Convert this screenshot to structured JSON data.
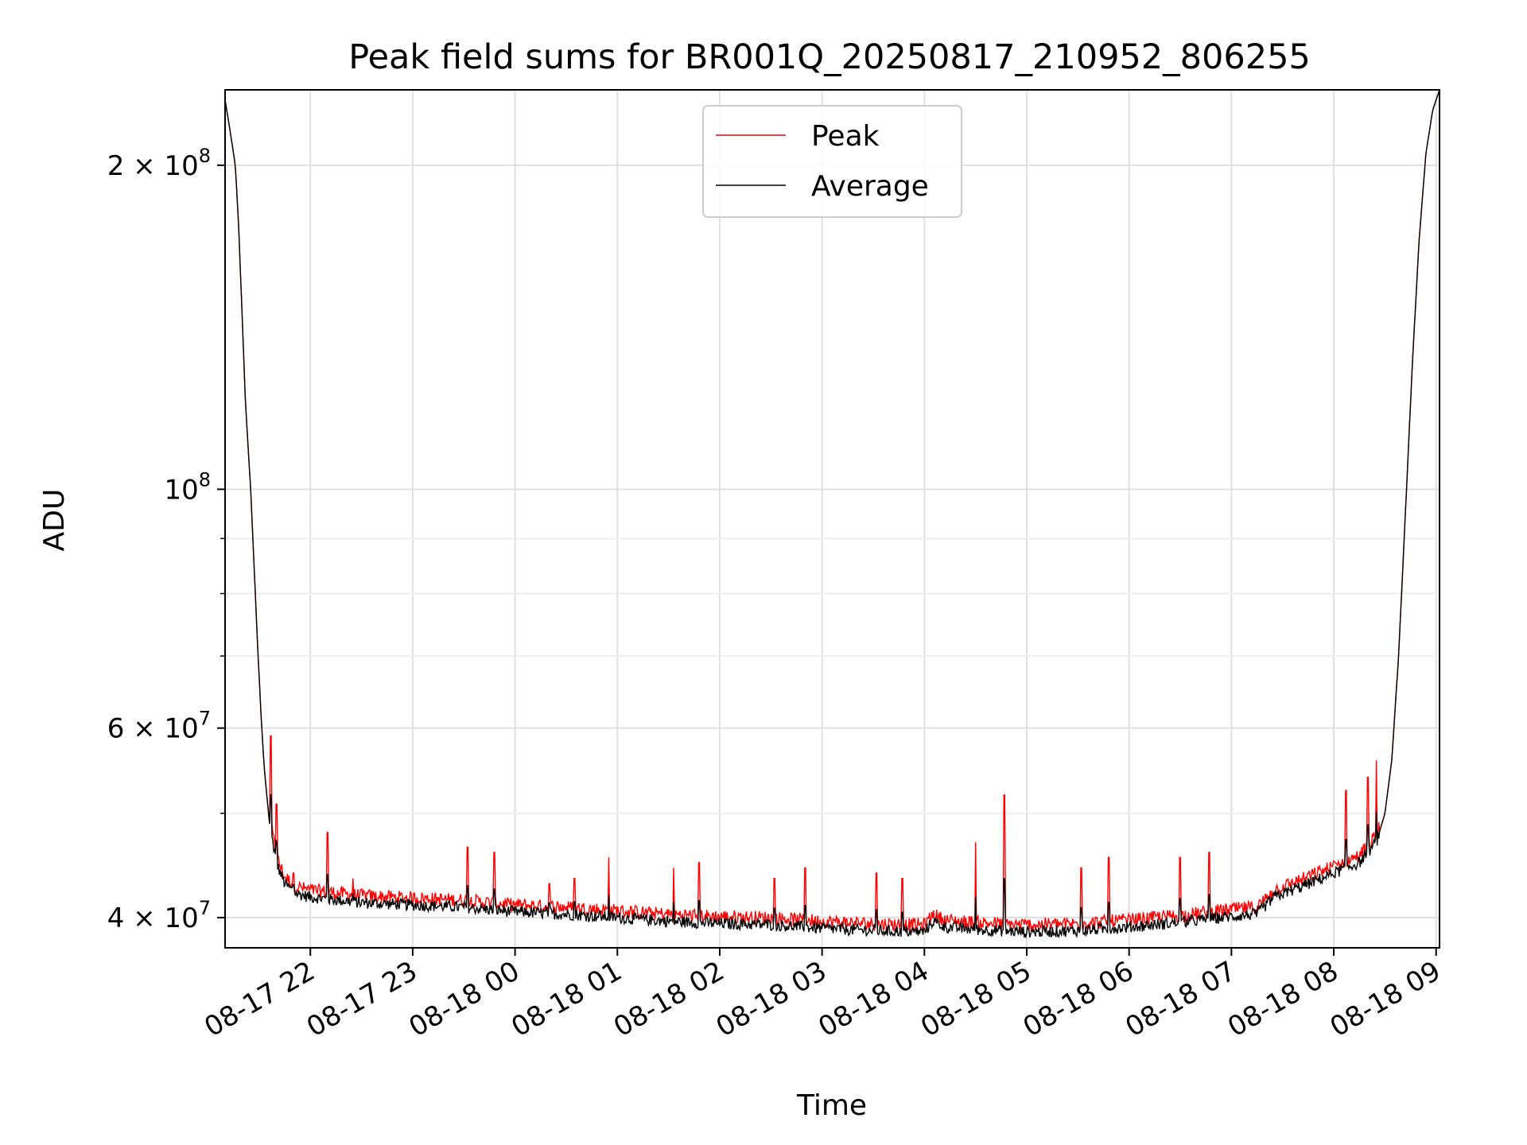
{
  "chart_data": {
    "type": "line",
    "title": "Peak field sums for BR001Q_20250817_210952_806255",
    "xlabel": "Time",
    "ylabel": "ADU",
    "y_scale": "log",
    "ylim": [
      37500000,
      235000000
    ],
    "xlim": [
      "2025-08-17 21:10",
      "2025-08-18 09:02"
    ],
    "x_ticks": [
      "08-17 22",
      "08-17 23",
      "08-18 00",
      "08-18 01",
      "08-18 02",
      "08-18 03",
      "08-18 04",
      "08-18 05",
      "08-18 06",
      "08-18 07",
      "08-18 08",
      "08-18 09"
    ],
    "y_ticks": [
      {
        "value": 40000000,
        "mantissa": "4",
        "exp": "7"
      },
      {
        "value": 60000000,
        "mantissa": "6",
        "exp": "7"
      },
      {
        "value": 100000000,
        "mantissa": "",
        "exp": "8"
      },
      {
        "value": 200000000,
        "mantissa": "2",
        "exp": "8"
      }
    ],
    "grid": true,
    "legend_position": "top-center",
    "series": [
      {
        "name": "Peak",
        "color": "#ff0000"
      },
      {
        "name": "Average",
        "color": "#000000"
      }
    ],
    "average_points": [
      [
        "2025-08-17 21:10",
        230000000
      ],
      [
        "2025-08-17 21:13",
        215000000
      ],
      [
        "2025-08-17 21:16",
        200000000
      ],
      [
        "2025-08-17 21:18",
        175000000
      ],
      [
        "2025-08-17 21:20",
        145000000
      ],
      [
        "2025-08-17 21:22",
        120000000
      ],
      [
        "2025-08-17 21:25",
        100000000
      ],
      [
        "2025-08-17 21:27",
        85000000
      ],
      [
        "2025-08-17 21:29",
        72000000
      ],
      [
        "2025-08-17 21:31",
        62000000
      ],
      [
        "2025-08-17 21:33",
        55000000
      ],
      [
        "2025-08-17 21:36",
        49000000
      ],
      [
        "2025-08-17 21:40",
        45000000
      ],
      [
        "2025-08-17 21:45",
        43000000
      ],
      [
        "2025-08-17 21:52",
        42100000
      ],
      [
        "2025-08-17 22:00",
        41800000
      ],
      [
        "2025-08-17 22:30",
        41300000
      ],
      [
        "2025-08-17 23:00",
        41100000
      ],
      [
        "2025-08-17 23:30",
        40900000
      ],
      [
        "2025-08-18 00:00",
        40500000
      ],
      [
        "2025-08-18 00:30",
        40300000
      ],
      [
        "2025-08-18 01:00",
        40000000
      ],
      [
        "2025-08-18 01:30",
        39700000
      ],
      [
        "2025-08-18 02:00",
        39500000
      ],
      [
        "2025-08-18 02:30",
        39400000
      ],
      [
        "2025-08-18 03:00",
        39100000
      ],
      [
        "2025-08-18 03:30",
        38900000
      ],
      [
        "2025-08-18 04:00",
        38800000
      ],
      [
        "2025-08-18 04:05",
        39700000
      ],
      [
        "2025-08-18 04:12",
        39200000
      ],
      [
        "2025-08-18 04:30",
        39000000
      ],
      [
        "2025-08-18 05:00",
        38800000
      ],
      [
        "2025-08-18 05:30",
        38900000
      ],
      [
        "2025-08-18 06:00",
        39200000
      ],
      [
        "2025-08-18 06:30",
        39600000
      ],
      [
        "2025-08-18 07:00",
        40100000
      ],
      [
        "2025-08-18 07:15",
        40300000
      ],
      [
        "2025-08-18 07:25",
        41800000
      ],
      [
        "2025-08-18 07:45",
        43000000
      ],
      [
        "2025-08-18 08:00",
        44000000
      ],
      [
        "2025-08-18 08:15",
        45000000
      ],
      [
        "2025-08-18 08:25",
        47000000
      ],
      [
        "2025-08-18 08:30",
        50000000
      ],
      [
        "2025-08-18 08:34",
        56000000
      ],
      [
        "2025-08-18 08:38",
        70000000
      ],
      [
        "2025-08-18 08:42",
        95000000
      ],
      [
        "2025-08-18 08:46",
        130000000
      ],
      [
        "2025-08-18 08:50",
        170000000
      ],
      [
        "2025-08-18 08:54",
        205000000
      ],
      [
        "2025-08-18 08:58",
        225000000
      ],
      [
        "2025-08-18 09:02",
        235000000
      ]
    ],
    "peak_spikes": [
      [
        "2025-08-17 21:30",
        65000000
      ],
      [
        "2025-08-17 21:37",
        59000000
      ],
      [
        "2025-08-17 21:40",
        51000000
      ],
      [
        "2025-08-17 21:50",
        44000000
      ],
      [
        "2025-08-17 22:10",
        48000000
      ],
      [
        "2025-08-17 22:25",
        43500000
      ],
      [
        "2025-08-17 23:32",
        46500000
      ],
      [
        "2025-08-17 23:48",
        46000000
      ],
      [
        "2025-08-18 00:20",
        43000000
      ],
      [
        "2025-08-18 00:35",
        43500000
      ],
      [
        "2025-08-18 00:55",
        45500000
      ],
      [
        "2025-08-18 01:33",
        44500000
      ],
      [
        "2025-08-18 01:48",
        45000000
      ],
      [
        "2025-08-18 02:32",
        43500000
      ],
      [
        "2025-08-18 02:50",
        44500000
      ],
      [
        "2025-08-18 03:32",
        44000000
      ],
      [
        "2025-08-18 03:47",
        43500000
      ],
      [
        "2025-08-18 04:30",
        47000000
      ],
      [
        "2025-08-18 04:47",
        52000000
      ],
      [
        "2025-08-18 05:32",
        44500000
      ],
      [
        "2025-08-18 05:48",
        45500000
      ],
      [
        "2025-08-18 06:30",
        45500000
      ],
      [
        "2025-08-18 06:47",
        46000000
      ],
      [
        "2025-08-18 08:07",
        52500000
      ],
      [
        "2025-08-18 08:20",
        54000000
      ],
      [
        "2025-08-18 08:25",
        56000000
      ]
    ]
  }
}
